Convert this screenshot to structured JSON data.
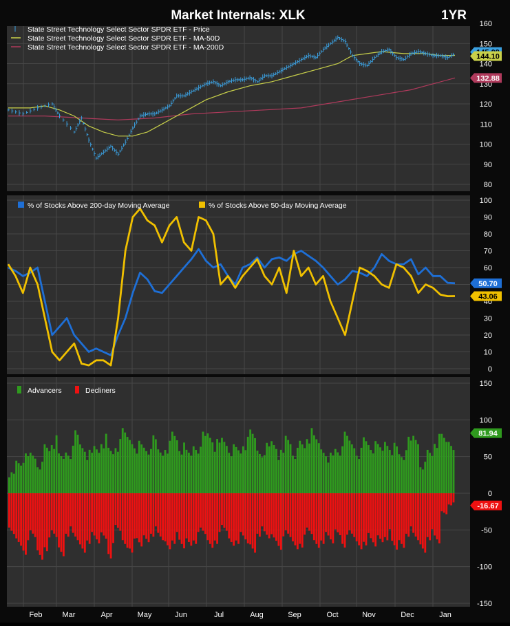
{
  "header": {
    "title": "Market Internals: XLK",
    "period": "1YR"
  },
  "colors": {
    "background": "#2f2f2f",
    "grid": "#474747",
    "price": "#3ba0e0",
    "ma50": "#c8d04a",
    "ma200": "#b03a5c",
    "pct200": "#1e6fd6",
    "pct50": "#f0c000",
    "advancers": "#2f9a1e",
    "decliners": "#ee1111",
    "text": "#ffffff"
  },
  "months": [
    "Feb",
    "Mar",
    "Apr",
    "May",
    "Jun",
    "Jul",
    "Aug",
    "Sep",
    "Oct",
    "Nov",
    "Dec",
    "Jan"
  ],
  "chart_data": [
    {
      "type": "line",
      "legend": [
        "State Street Technology Select Sector SPDR ETF - Price",
        "State Street Technology Select Sector SPDR ETF - MA-50D",
        "State Street Technology Select Sector SPDR ETF - MA-200D"
      ],
      "legend_position": "top-left",
      "ylim": [
        80,
        160
      ],
      "yticks": [
        80,
        90,
        100,
        110,
        120,
        130,
        140,
        150,
        160
      ],
      "series": [
        {
          "name": "State Street Technology Select Sector SPDR ETF - Price",
          "style": "ohlc",
          "points": [
            [
              0,
              117
            ],
            [
              2,
              115
            ],
            [
              4,
              118
            ],
            [
              6,
              120
            ],
            [
              7,
              114
            ],
            [
              9,
              106
            ],
            [
              10,
              113
            ],
            [
              11,
              102
            ],
            [
              12,
              93
            ],
            [
              13,
              96
            ],
            [
              14,
              99
            ],
            [
              15,
              95
            ],
            [
              16,
              101
            ],
            [
              17,
              108
            ],
            [
              18,
              114
            ],
            [
              19,
              115
            ],
            [
              20,
              115
            ],
            [
              21,
              117
            ],
            [
              22,
              119
            ],
            [
              23,
              124
            ],
            [
              24,
              124
            ],
            [
              25,
              126
            ],
            [
              26,
              128
            ],
            [
              27,
              130
            ],
            [
              28,
              131
            ],
            [
              29,
              129
            ],
            [
              30,
              131
            ],
            [
              31,
              132
            ],
            [
              32,
              132
            ],
            [
              33,
              133
            ],
            [
              34,
              131
            ],
            [
              35,
              134
            ],
            [
              36,
              134
            ],
            [
              37,
              136
            ],
            [
              38,
              138
            ],
            [
              39,
              140
            ],
            [
              40,
              142
            ],
            [
              41,
              144
            ],
            [
              42,
              143
            ],
            [
              43,
              147
            ],
            [
              44,
              150
            ],
            [
              45,
              153
            ],
            [
              46,
              151
            ],
            [
              47,
              144
            ],
            [
              48,
              140
            ],
            [
              49,
              139
            ],
            [
              50,
              143
            ],
            [
              51,
              146
            ],
            [
              52,
              147
            ],
            [
              53,
              143
            ],
            [
              54,
              142
            ],
            [
              55,
              145
            ],
            [
              56,
              146
            ],
            [
              57,
              145
            ],
            [
              58,
              144
            ],
            [
              59,
              144
            ],
            [
              60,
              143
            ],
            [
              61,
              145
            ]
          ],
          "last": 145.09
        },
        {
          "name": "State Street Technology Select Sector SPDR ETF - MA-50D",
          "style": "line",
          "points": [
            [
              0,
              118
            ],
            [
              3,
              118
            ],
            [
              5,
              119
            ],
            [
              7,
              117
            ],
            [
              9,
              114
            ],
            [
              11,
              109
            ],
            [
              13,
              106
            ],
            [
              15,
              104
            ],
            [
              17,
              104
            ],
            [
              19,
              106
            ],
            [
              21,
              110
            ],
            [
              24,
              116
            ],
            [
              27,
              122
            ],
            [
              30,
              126
            ],
            [
              33,
              129
            ],
            [
              36,
              131
            ],
            [
              39,
              134
            ],
            [
              42,
              137
            ],
            [
              45,
              140
            ],
            [
              47,
              144
            ],
            [
              49,
              145
            ],
            [
              51,
              146
            ],
            [
              54,
              145
            ],
            [
              57,
              145
            ],
            [
              59,
              144
            ],
            [
              61,
              144.1
            ]
          ],
          "last": 144.1
        },
        {
          "name": "State Street Technology Select Sector SPDR ETF - MA-200D",
          "style": "line",
          "points": [
            [
              0,
              114
            ],
            [
              5,
              114
            ],
            [
              10,
              113
            ],
            [
              15,
              112
            ],
            [
              20,
              113
            ],
            [
              25,
              115
            ],
            [
              30,
              116
            ],
            [
              35,
              117
            ],
            [
              40,
              118
            ],
            [
              45,
              121
            ],
            [
              50,
              124
            ],
            [
              55,
              127
            ],
            [
              61,
              132.88
            ]
          ],
          "last": 132.88
        }
      ]
    },
    {
      "type": "line",
      "legend": [
        "% of Stocks Above 200-day Moving Average",
        "% of Stocks Above 50-day Moving Average"
      ],
      "legend_position": "top-left",
      "ylim": [
        0,
        100
      ],
      "yticks": [
        0,
        10,
        20,
        30,
        40,
        50,
        60,
        70,
        80,
        90,
        100
      ],
      "series": [
        {
          "name": "% of Stocks Above 200-day Moving Average",
          "values": [
            60,
            58,
            55,
            57,
            60,
            40,
            20,
            25,
            30,
            20,
            15,
            10,
            12,
            10,
            8,
            20,
            30,
            45,
            57,
            53,
            46,
            45,
            50,
            55,
            60,
            65,
            71,
            64,
            60,
            62,
            55,
            50,
            60,
            62,
            66,
            60,
            65,
            66,
            64,
            68,
            70,
            67,
            64,
            60,
            55,
            50,
            53,
            58,
            57,
            55,
            60,
            68,
            64,
            62,
            62,
            65,
            56,
            60,
            55,
            55,
            51,
            50.7
          ],
          "last": 50.7
        },
        {
          "name": "% of Stocks Above 50-day Moving Average",
          "values": [
            62,
            55,
            45,
            60,
            50,
            30,
            10,
            5,
            10,
            15,
            3,
            2,
            5,
            5,
            2,
            30,
            70,
            90,
            95,
            88,
            85,
            75,
            85,
            90,
            75,
            70,
            90,
            88,
            80,
            50,
            55,
            48,
            55,
            60,
            65,
            55,
            50,
            60,
            45,
            70,
            55,
            60,
            50,
            55,
            40,
            30,
            20,
            40,
            60,
            58,
            55,
            50,
            48,
            62,
            60,
            55,
            45,
            50,
            48,
            44,
            43,
            43.06
          ],
          "last": 43.06
        }
      ]
    },
    {
      "type": "bar",
      "legend": [
        "Advancers",
        "Decliners"
      ],
      "legend_position": "top-left",
      "ylim": [
        -150,
        150
      ],
      "yticks": [
        -150,
        -100,
        -50,
        0,
        50,
        100,
        150
      ],
      "series": [
        {
          "name": "Advancers",
          "values": [
            30,
            50,
            55,
            60,
            45,
            70,
            80,
            55,
            65,
            90,
            75,
            60,
            70,
            85,
            65,
            75,
            90,
            85,
            75,
            70,
            80,
            65,
            75,
            88,
            70,
            60,
            75,
            88,
            92,
            75,
            82,
            70,
            66,
            78,
            88,
            68,
            72,
            80,
            60,
            85,
            65,
            75,
            90,
            80,
            70,
            58,
            68,
            85,
            78,
            65,
            80,
            72,
            68,
            82,
            72,
            60,
            78,
            85,
            45,
            62,
            82,
            82,
            81.94
          ],
          "last": 81.94
        },
        {
          "name": "Decliners",
          "values": [
            -65,
            -75,
            -85,
            -70,
            -95,
            -80,
            -70,
            -90,
            -60,
            -75,
            -85,
            -70,
            -80,
            -65,
            -90,
            -60,
            -78,
            -82,
            -85,
            -70,
            -60,
            -75,
            -80,
            -70,
            -88,
            -75,
            -70,
            -65,
            -78,
            -70,
            -60,
            -75,
            -70,
            -80,
            -85,
            -60,
            -72,
            -68,
            -78,
            -70,
            -80,
            -75,
            -65,
            -78,
            -70,
            -80,
            -60,
            -75,
            -70,
            -80,
            -72,
            -85,
            -70,
            -65,
            -90,
            -78,
            -60,
            -75,
            -85,
            -65,
            -80,
            -30,
            -16.67
          ],
          "last": -16.67
        }
      ]
    }
  ]
}
